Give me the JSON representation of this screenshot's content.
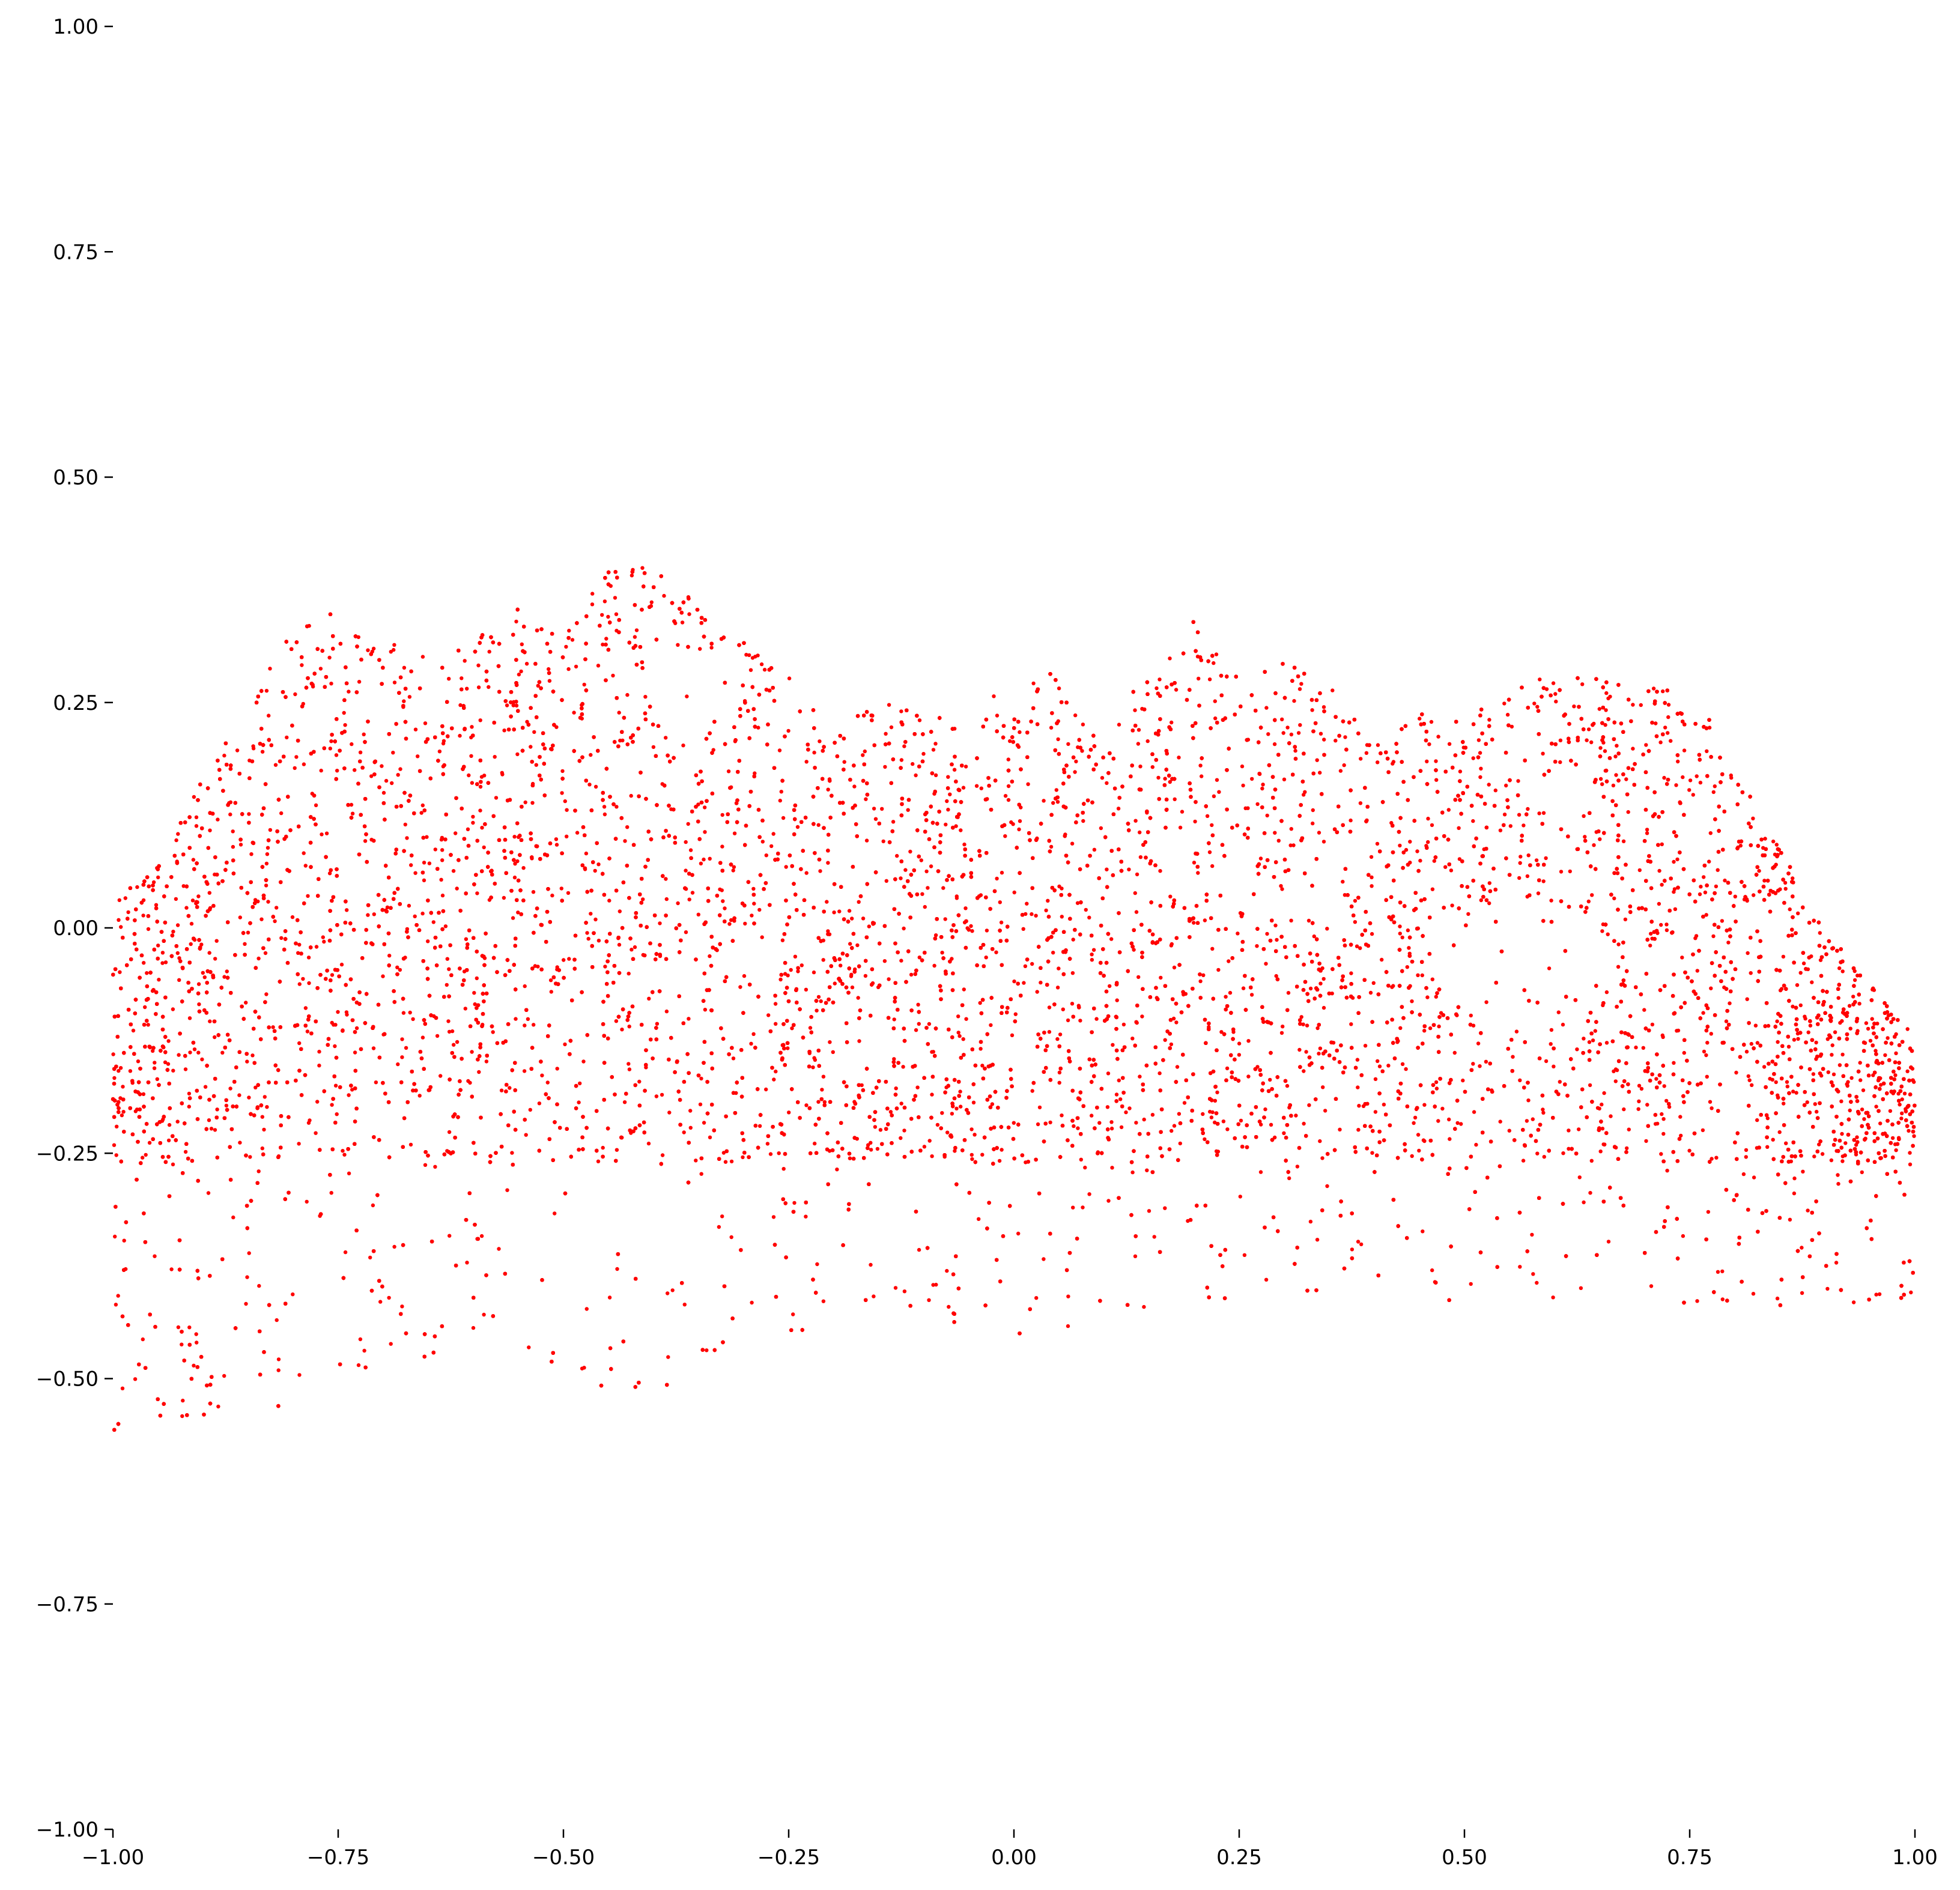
{
  "chart_data": {
    "type": "scatter",
    "title": "",
    "xlabel": "",
    "ylabel": "",
    "xlim": [
      -1.0,
      1.0
    ],
    "ylim": [
      -1.0,
      1.0
    ],
    "grid": false,
    "legend": null,
    "x_ticks": [
      -1.0,
      -0.75,
      -0.5,
      -0.25,
      0.0,
      0.25,
      0.5,
      0.75,
      1.0
    ],
    "x_tick_labels": [
      "−1.00",
      "−0.75",
      "−0.50",
      "−0.25",
      "0.00",
      "0.25",
      "0.50",
      "0.75",
      "1.00"
    ],
    "y_ticks": [
      1.0,
      0.75,
      0.5,
      0.25,
      0.0,
      -0.25,
      -0.5,
      -0.75,
      -1.0
    ],
    "y_tick_labels": [
      "1.00",
      "0.75",
      "0.50",
      "0.25",
      "0.00",
      "−0.25",
      "−0.50",
      "−0.75",
      "−1.00"
    ],
    "marker_color": "#ff0000",
    "series": [
      {
        "description_of_extent": "dense point cloud",
        "upper_envelope": {
          "x": [
            -1.0,
            -0.95,
            -0.9,
            -0.85,
            -0.8,
            -0.75,
            -0.7,
            -0.65,
            -0.6,
            -0.55,
            -0.5,
            -0.45,
            -0.4,
            -0.35,
            -0.3,
            -0.25,
            -0.2,
            -0.15,
            -0.1,
            -0.05,
            0.0,
            0.05,
            0.1,
            0.15,
            0.2,
            0.25,
            0.3,
            0.35,
            0.4,
            0.45,
            0.5,
            0.55,
            0.6,
            0.65,
            0.7,
            0.75,
            0.8,
            0.85,
            0.9,
            0.95,
            1.0
          ],
          "y": [
            0.03,
            0.07,
            0.17,
            0.24,
            0.34,
            0.35,
            0.32,
            0.3,
            0.33,
            0.36,
            0.32,
            0.4,
            0.41,
            0.37,
            0.33,
            0.28,
            0.22,
            0.25,
            0.24,
            0.22,
            0.29,
            0.28,
            0.21,
            0.3,
            0.34,
            0.28,
            0.3,
            0.28,
            0.2,
            0.24,
            0.24,
            0.27,
            0.28,
            0.28,
            0.27,
            0.27,
            0.18,
            0.09,
            0.0,
            -0.06,
            -0.12
          ]
        },
        "lower_envelope": {
          "x": [
            -1.0,
            -0.95,
            -0.9,
            -0.85,
            -0.8,
            -0.75,
            -0.7,
            -0.65,
            -0.6,
            -0.55,
            -0.5,
            -0.45,
            -0.4,
            -0.35,
            -0.3,
            -0.25,
            -0.2,
            -0.15,
            -0.1,
            -0.05,
            0.0,
            0.05,
            0.1,
            0.15,
            0.2,
            0.25,
            0.3,
            0.35,
            0.4,
            0.45,
            0.5,
            0.55,
            0.6,
            0.65,
            0.7,
            0.75,
            0.8,
            0.85,
            0.9,
            0.95,
            1.0
          ],
          "y": [
            -0.56,
            -0.55,
            -0.54,
            -0.54,
            -0.53,
            -0.52,
            -0.5,
            -0.48,
            -0.45,
            -0.47,
            -0.51,
            -0.51,
            -0.52,
            -0.5,
            -0.49,
            -0.47,
            -0.45,
            -0.44,
            -0.45,
            -0.44,
            -0.45,
            -0.45,
            -0.44,
            -0.44,
            -0.44,
            -0.43,
            -0.42,
            -0.42,
            -0.42,
            -0.43,
            -0.42,
            -0.42,
            -0.42,
            -0.42,
            -0.41,
            -0.42,
            -0.42,
            -0.42,
            -0.42,
            -0.42,
            -0.42
          ]
        },
        "sparse_region_below": -0.26,
        "holes": [
          {
            "cx": 0.21,
            "cy": 0.05,
            "rx": 0.12,
            "ry": 0.01
          },
          {
            "cx": 0.57,
            "cy": -0.04,
            "rx": 0.1,
            "ry": 0.07
          },
          {
            "cx": -0.36,
            "cy": 0.26,
            "rx": 0.04,
            "ry": 0.05
          },
          {
            "cx": 0.6,
            "cy": 0.15,
            "rx": 0.04,
            "ry": 0.02
          },
          {
            "cx": -0.42,
            "cy": -0.32,
            "rx": 0.08,
            "ry": 0.05
          },
          {
            "cx": 0.3,
            "cy": 0.02,
            "rx": 0.05,
            "ry": 0.01
          }
        ]
      }
    ]
  }
}
